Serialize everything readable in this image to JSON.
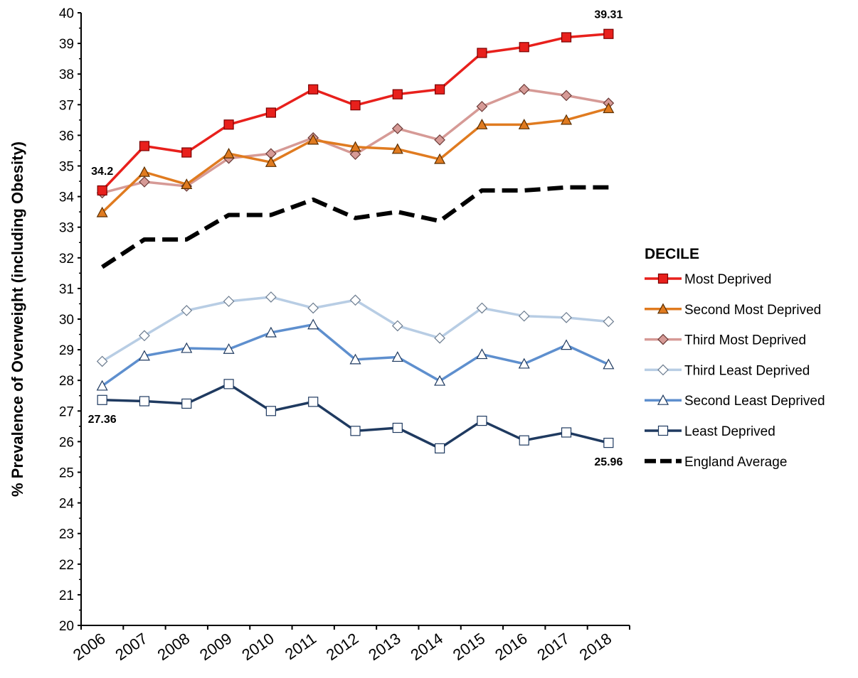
{
  "chart_data": {
    "type": "line",
    "ylabel": "% Prevalence of Overweight (including Obesity)",
    "xlabel": "",
    "ylim": [
      20,
      40
    ],
    "y_ticks": [
      "20",
      "21",
      "22",
      "23",
      "24",
      "25",
      "26",
      "27",
      "28",
      "29",
      "30",
      "31",
      "32",
      "33",
      "34",
      "35",
      "36",
      "37",
      "38",
      "39",
      "40"
    ],
    "x": [
      "2006",
      "2007",
      "2008",
      "2009",
      "2010",
      "2011",
      "2012",
      "2013",
      "2014",
      "2015",
      "2016",
      "2017",
      "2018"
    ],
    "legend_title": "DECILE",
    "legend_position": "right",
    "series": [
      {
        "name": "Most Deprived",
        "color": "#e8201c",
        "marker": "square",
        "values": [
          34.2,
          35.65,
          35.44,
          36.35,
          36.74,
          37.5,
          36.98,
          37.34,
          37.5,
          38.69,
          38.88,
          39.2,
          39.31
        ]
      },
      {
        "name": "Second Most Deprived",
        "color": "#e07b20",
        "marker": "triangle",
        "values": [
          33.48,
          34.8,
          34.4,
          35.4,
          35.12,
          35.85,
          35.62,
          35.55,
          35.22,
          36.35,
          36.35,
          36.5,
          36.88
        ]
      },
      {
        "name": "Third Most Deprived",
        "color": "#d69a96",
        "marker": "diamond",
        "values": [
          34.12,
          34.48,
          34.34,
          35.25,
          35.4,
          35.92,
          35.38,
          36.22,
          35.85,
          36.94,
          37.5,
          37.3,
          37.05
        ]
      },
      {
        "name": "Third Least Deprived",
        "color": "#b8cde4",
        "marker": "diamond",
        "values": [
          28.62,
          29.46,
          30.28,
          30.58,
          30.72,
          30.36,
          30.62,
          29.78,
          29.38,
          30.36,
          30.1,
          30.05,
          29.92
        ]
      },
      {
        "name": "Second Least Deprived",
        "color": "#5e8fce",
        "marker": "triangle",
        "values": [
          27.82,
          28.8,
          29.05,
          29.02,
          29.56,
          29.82,
          28.68,
          28.76,
          27.98,
          28.85,
          28.54,
          29.15,
          28.52
        ]
      },
      {
        "name": "Least Deprived",
        "color": "#1f3a60",
        "marker": "square",
        "values": [
          27.36,
          27.32,
          27.24,
          27.88,
          27.0,
          27.3,
          26.35,
          26.45,
          25.78,
          26.68,
          26.04,
          26.3,
          25.96
        ]
      },
      {
        "name": "England Average",
        "color": "#000000",
        "marker": "dashed",
        "values": [
          31.7,
          32.6,
          32.6,
          33.4,
          33.4,
          33.9,
          33.3,
          33.5,
          33.2,
          34.2,
          34.2,
          34.3,
          34.3
        ]
      }
    ],
    "annotations": [
      {
        "text": "34.2",
        "series": "Most Deprived",
        "x": "2006"
      },
      {
        "text": "39.31",
        "series": "Most Deprived",
        "x": "2018"
      },
      {
        "text": "27.36",
        "series": "Least Deprived",
        "x": "2006"
      },
      {
        "text": "25.96",
        "series": "Least Deprived",
        "x": "2018"
      }
    ]
  }
}
